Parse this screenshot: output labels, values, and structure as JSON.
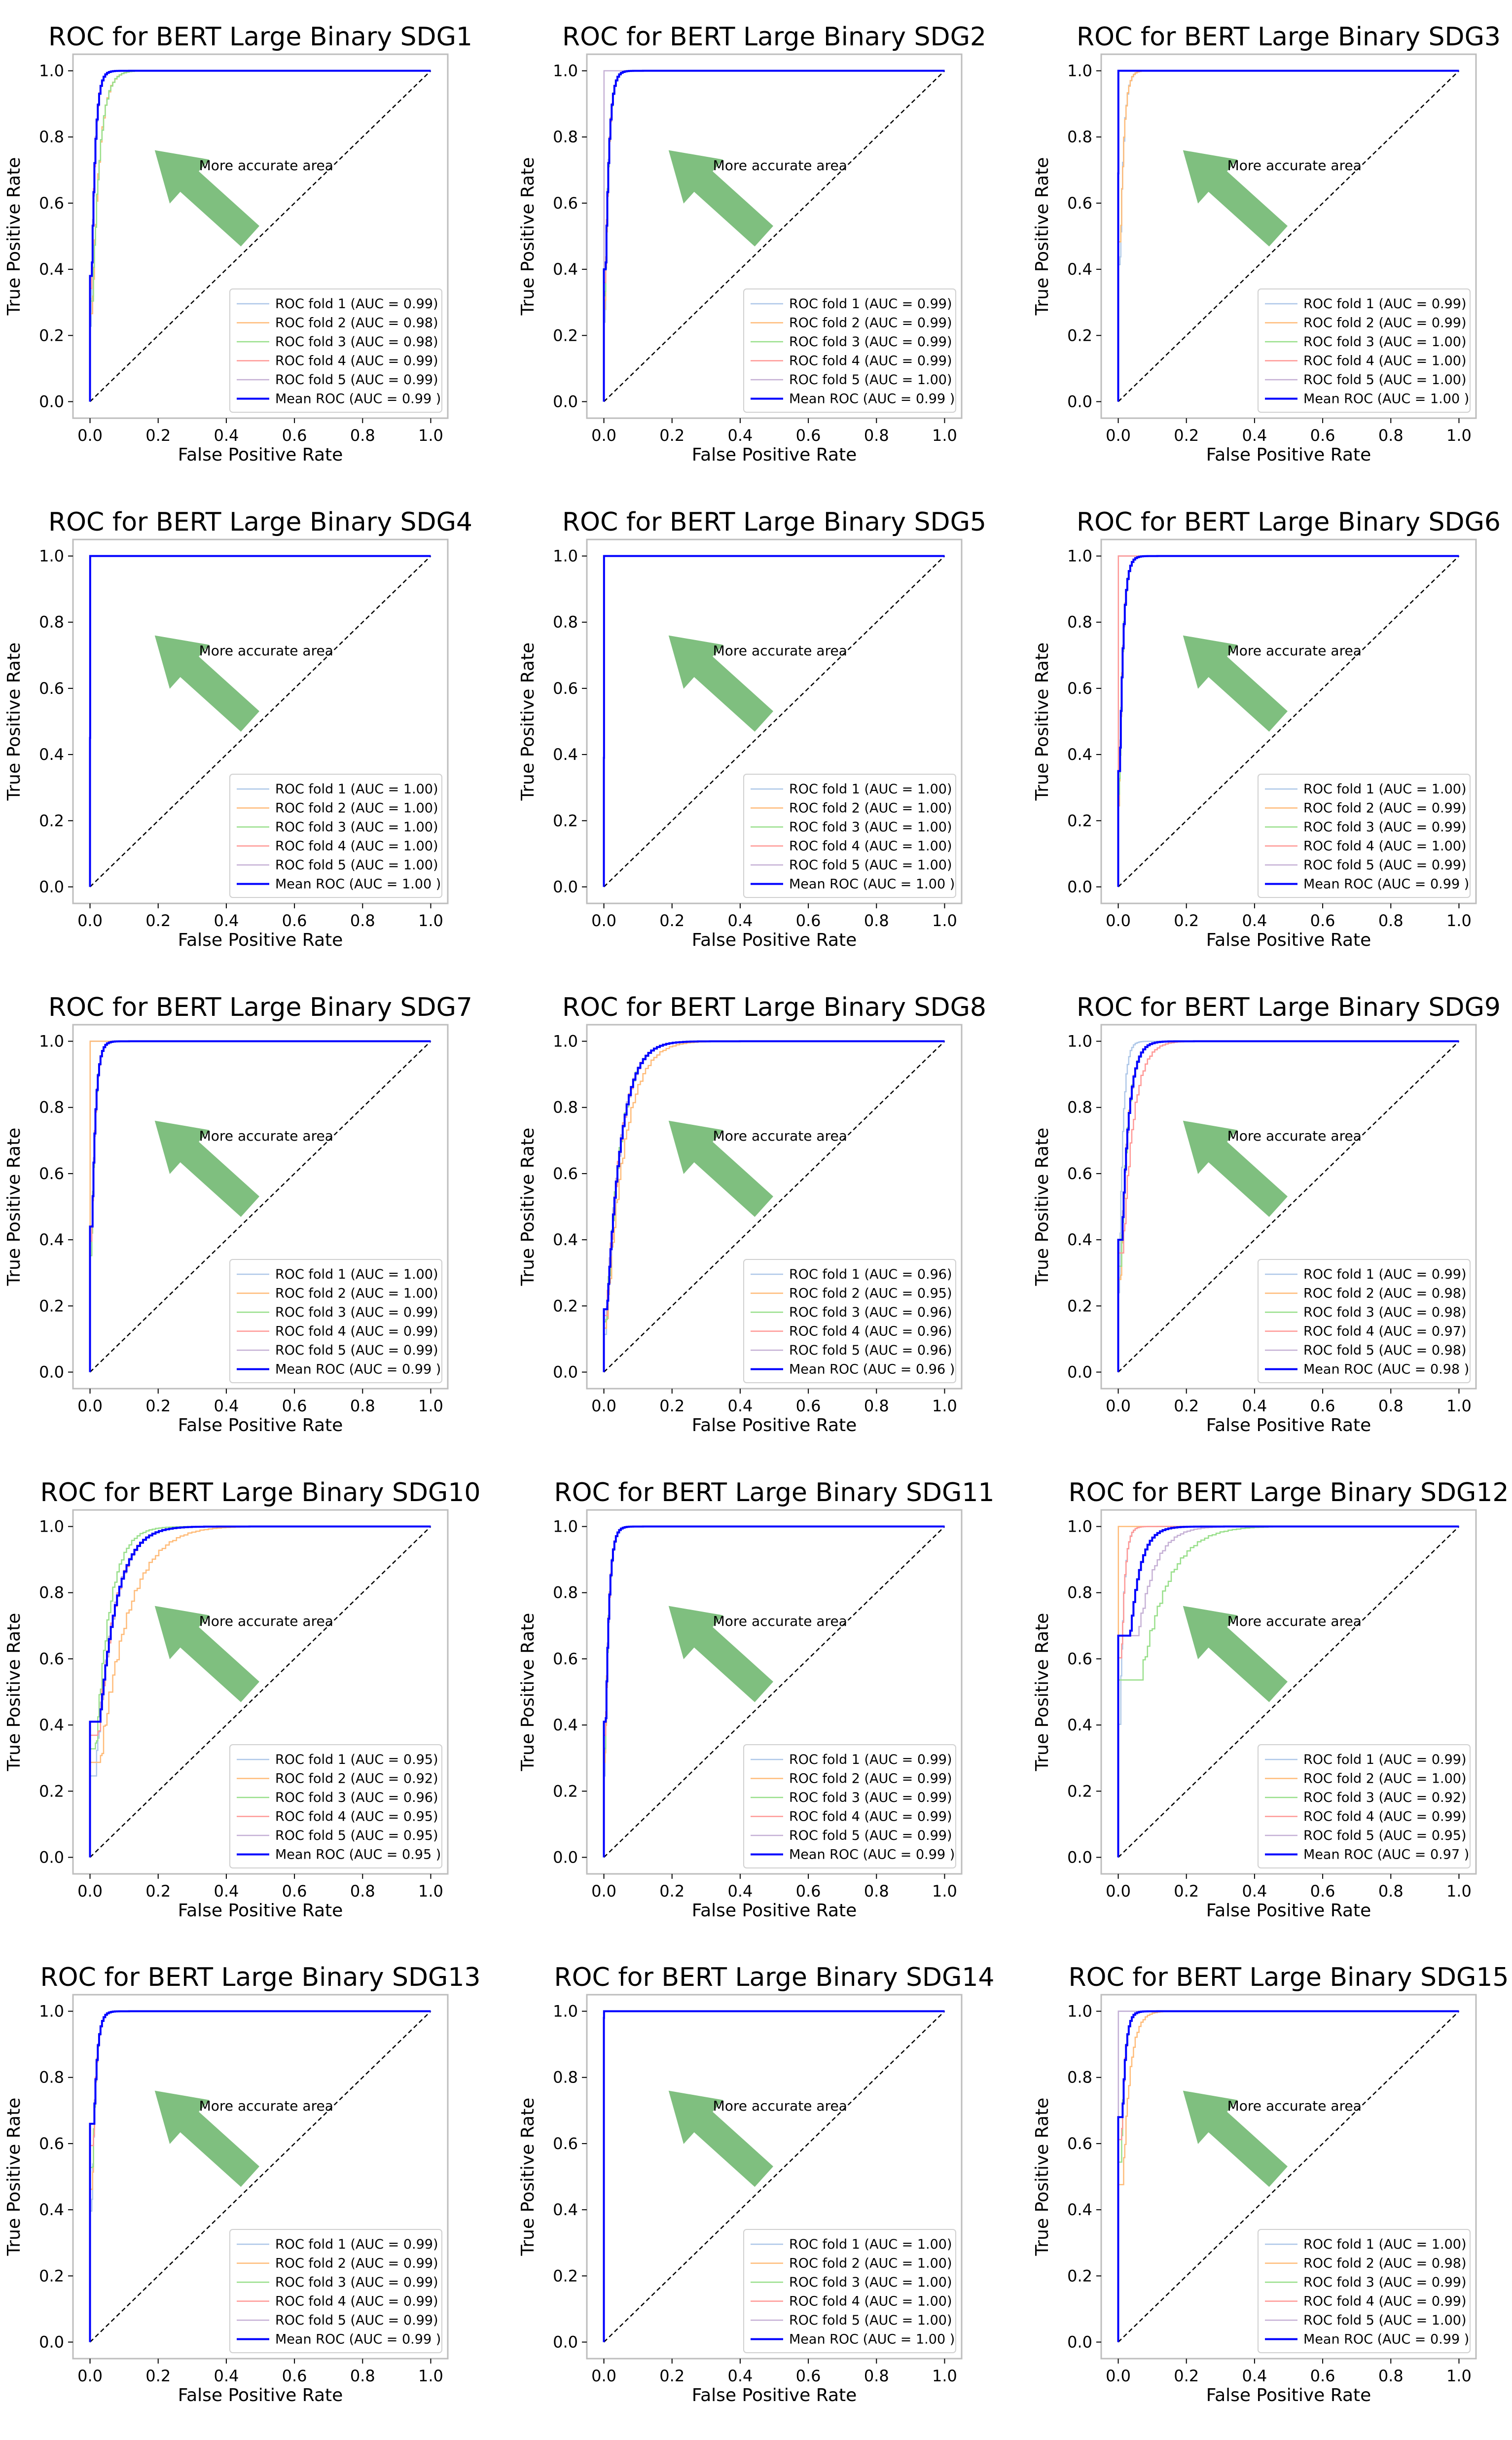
{
  "figure": {
    "arrow_label": "More accurate area",
    "x_axis_label": "False Positive Rate",
    "y_axis_label": "True Positive Rate",
    "ticks": [
      "0.0",
      "0.2",
      "0.4",
      "0.6",
      "0.8",
      "1.0"
    ]
  },
  "colors": {
    "fold1": "#aec7e8",
    "fold2": "#ffbb78",
    "fold3": "#98df8a",
    "fold4": "#ff9896",
    "fold5": "#c5b0d5",
    "mean": "#0000ff",
    "diagonal": "#000000",
    "arrow": "#7fbf7f"
  },
  "chart_data": [
    {
      "type": "line",
      "title": "ROC for BERT Large Binary SDG1",
      "xlabel": "False Positive Rate",
      "ylabel": "True Positive Rate",
      "xlim": [
        0,
        1
      ],
      "ylim": [
        0,
        1
      ],
      "legend_position": "lower-right",
      "folds": [
        {
          "label": "ROC fold 1 (AUC = 0.99)",
          "auc": 0.99
        },
        {
          "label": "ROC fold 2 (AUC = 0.98)",
          "auc": 0.98
        },
        {
          "label": "ROC fold 3 (AUC = 0.98)",
          "auc": 0.98
        },
        {
          "label": "ROC fold 4 (AUC = 0.99)",
          "auc": 0.99
        },
        {
          "label": "ROC fold 5 (AUC = 0.99)",
          "auc": 0.99
        }
      ],
      "mean": {
        "label": "Mean ROC (AUC = 0.99 )",
        "auc": 0.99,
        "start_tpr": 0.38
      }
    },
    {
      "type": "line",
      "title": "ROC for BERT Large Binary SDG2",
      "xlabel": "False Positive Rate",
      "ylabel": "True Positive Rate",
      "xlim": [
        0,
        1
      ],
      "ylim": [
        0,
        1
      ],
      "legend_position": "lower-right",
      "folds": [
        {
          "label": "ROC fold 1 (AUC = 0.99)",
          "auc": 0.99
        },
        {
          "label": "ROC fold 2 (AUC = 0.99)",
          "auc": 0.99
        },
        {
          "label": "ROC fold 3 (AUC = 0.99)",
          "auc": 0.99
        },
        {
          "label": "ROC fold 4 (AUC = 0.99)",
          "auc": 0.99
        },
        {
          "label": "ROC fold 5 (AUC = 1.00)",
          "auc": 1.0
        }
      ],
      "mean": {
        "label": "Mean ROC (AUC = 0.99 )",
        "auc": 0.99,
        "start_tpr": 0.4
      }
    },
    {
      "type": "line",
      "title": "ROC for BERT Large Binary SDG3",
      "xlabel": "False Positive Rate",
      "ylabel": "True Positive Rate",
      "xlim": [
        0,
        1
      ],
      "ylim": [
        0,
        1
      ],
      "legend_position": "lower-right",
      "folds": [
        {
          "label": "ROC fold 1 (AUC = 0.99)",
          "auc": 0.99
        },
        {
          "label": "ROC fold 2 (AUC = 0.99)",
          "auc": 0.99
        },
        {
          "label": "ROC fold 3 (AUC = 1.00)",
          "auc": 1.0
        },
        {
          "label": "ROC fold 4 (AUC = 1.00)",
          "auc": 1.0
        },
        {
          "label": "ROC fold 5 (AUC = 1.00)",
          "auc": 1.0
        }
      ],
      "mean": {
        "label": "Mean ROC (AUC = 1.00 )",
        "auc": 1.0,
        "start_tpr": 0.69
      }
    },
    {
      "type": "line",
      "title": "ROC for BERT Large Binary SDG4",
      "xlabel": "False Positive Rate",
      "ylabel": "True Positive Rate",
      "xlim": [
        0,
        1
      ],
      "ylim": [
        0,
        1
      ],
      "legend_position": "lower-right",
      "folds": [
        {
          "label": "ROC fold 1 (AUC = 1.00)",
          "auc": 1.0
        },
        {
          "label": "ROC fold 2 (AUC = 1.00)",
          "auc": 1.0
        },
        {
          "label": "ROC fold 3 (AUC = 1.00)",
          "auc": 1.0
        },
        {
          "label": "ROC fold 4 (AUC = 1.00)",
          "auc": 1.0
        },
        {
          "label": "ROC fold 5 (AUC = 1.00)",
          "auc": 1.0
        }
      ],
      "mean": {
        "label": "Mean ROC (AUC = 1.00 )",
        "auc": 1.0,
        "start_tpr": 0.45
      }
    },
    {
      "type": "line",
      "title": "ROC for BERT Large Binary SDG5",
      "xlabel": "False Positive Rate",
      "ylabel": "True Positive Rate",
      "xlim": [
        0,
        1
      ],
      "ylim": [
        0,
        1
      ],
      "legend_position": "lower-right",
      "folds": [
        {
          "label": "ROC fold 1 (AUC = 1.00)",
          "auc": 1.0
        },
        {
          "label": "ROC fold 2 (AUC = 1.00)",
          "auc": 1.0
        },
        {
          "label": "ROC fold 3 (AUC = 1.00)",
          "auc": 1.0
        },
        {
          "label": "ROC fold 4 (AUC = 1.00)",
          "auc": 1.0
        },
        {
          "label": "ROC fold 5 (AUC = 1.00)",
          "auc": 1.0
        }
      ],
      "mean": {
        "label": "Mean ROC (AUC = 1.00 )",
        "auc": 1.0,
        "start_tpr": 0.39
      }
    },
    {
      "type": "line",
      "title": "ROC for BERT Large Binary SDG6",
      "xlabel": "False Positive Rate",
      "ylabel": "True Positive Rate",
      "xlim": [
        0,
        1
      ],
      "ylim": [
        0,
        1
      ],
      "legend_position": "lower-right",
      "folds": [
        {
          "label": "ROC fold 1 (AUC = 1.00)",
          "auc": 1.0
        },
        {
          "label": "ROC fold 2 (AUC = 0.99)",
          "auc": 0.99
        },
        {
          "label": "ROC fold 3 (AUC = 0.99)",
          "auc": 0.99
        },
        {
          "label": "ROC fold 4 (AUC = 1.00)",
          "auc": 1.0
        },
        {
          "label": "ROC fold 5 (AUC = 0.99)",
          "auc": 0.99
        }
      ],
      "mean": {
        "label": "Mean ROC (AUC = 0.99 )",
        "auc": 0.99,
        "start_tpr": 0.35
      }
    },
    {
      "type": "line",
      "title": "ROC for BERT Large Binary SDG7",
      "xlabel": "False Positive Rate",
      "ylabel": "True Positive Rate",
      "xlim": [
        0,
        1
      ],
      "ylim": [
        0,
        1
      ],
      "legend_position": "lower-right",
      "folds": [
        {
          "label": "ROC fold 1 (AUC = 1.00)",
          "auc": 1.0
        },
        {
          "label": "ROC fold 2 (AUC = 1.00)",
          "auc": 1.0
        },
        {
          "label": "ROC fold 3 (AUC = 0.99)",
          "auc": 0.99
        },
        {
          "label": "ROC fold 4 (AUC = 0.99)",
          "auc": 0.99
        },
        {
          "label": "ROC fold 5 (AUC = 0.99)",
          "auc": 0.99
        }
      ],
      "mean": {
        "label": "Mean ROC (AUC = 0.99 )",
        "auc": 0.99,
        "start_tpr": 0.44
      }
    },
    {
      "type": "line",
      "title": "ROC for BERT Large Binary SDG8",
      "xlabel": "False Positive Rate",
      "ylabel": "True Positive Rate",
      "xlim": [
        0,
        1
      ],
      "ylim": [
        0,
        1
      ],
      "legend_position": "lower-right",
      "folds": [
        {
          "label": "ROC fold 1 (AUC = 0.96)",
          "auc": 0.96
        },
        {
          "label": "ROC fold 2 (AUC = 0.95)",
          "auc": 0.95
        },
        {
          "label": "ROC fold 3 (AUC = 0.96)",
          "auc": 0.96
        },
        {
          "label": "ROC fold 4 (AUC = 0.96)",
          "auc": 0.96
        },
        {
          "label": "ROC fold 5 (AUC = 0.96)",
          "auc": 0.96
        }
      ],
      "mean": {
        "label": "Mean ROC (AUC = 0.96 )",
        "auc": 0.96,
        "start_tpr": 0.19
      }
    },
    {
      "type": "line",
      "title": "ROC for BERT Large Binary SDG9",
      "xlabel": "False Positive Rate",
      "ylabel": "True Positive Rate",
      "xlim": [
        0,
        1
      ],
      "ylim": [
        0,
        1
      ],
      "legend_position": "lower-right",
      "folds": [
        {
          "label": "ROC fold 1 (AUC = 0.99)",
          "auc": 0.99
        },
        {
          "label": "ROC fold 2 (AUC = 0.98)",
          "auc": 0.98
        },
        {
          "label": "ROC fold 3 (AUC = 0.98)",
          "auc": 0.98
        },
        {
          "label": "ROC fold 4 (AUC = 0.97)",
          "auc": 0.97
        },
        {
          "label": "ROC fold 5 (AUC = 0.98)",
          "auc": 0.98
        }
      ],
      "mean": {
        "label": "Mean ROC (AUC = 0.98 )",
        "auc": 0.98,
        "start_tpr": 0.4
      }
    },
    {
      "type": "line",
      "title": "ROC for BERT Large Binary SDG10",
      "xlabel": "False Positive Rate",
      "ylabel": "True Positive Rate",
      "xlim": [
        0,
        1
      ],
      "ylim": [
        0,
        1
      ],
      "legend_position": "lower-right",
      "folds": [
        {
          "label": "ROC fold 1 (AUC = 0.95)",
          "auc": 0.95
        },
        {
          "label": "ROC fold 2 (AUC = 0.92)",
          "auc": 0.92
        },
        {
          "label": "ROC fold 3 (AUC = 0.96)",
          "auc": 0.96
        },
        {
          "label": "ROC fold 4 (AUC = 0.95)",
          "auc": 0.95
        },
        {
          "label": "ROC fold 5 (AUC = 0.95)",
          "auc": 0.95
        }
      ],
      "mean": {
        "label": "Mean ROC (AUC = 0.95 )",
        "auc": 0.95,
        "start_tpr": 0.41
      }
    },
    {
      "type": "line",
      "title": "ROC for BERT Large Binary SDG11",
      "xlabel": "False Positive Rate",
      "ylabel": "True Positive Rate",
      "xlim": [
        0,
        1
      ],
      "ylim": [
        0,
        1
      ],
      "legend_position": "lower-right",
      "folds": [
        {
          "label": "ROC fold 1 (AUC = 0.99)",
          "auc": 0.99
        },
        {
          "label": "ROC fold 2 (AUC = 0.99)",
          "auc": 0.99
        },
        {
          "label": "ROC fold 3 (AUC = 0.99)",
          "auc": 0.99
        },
        {
          "label": "ROC fold 4 (AUC = 0.99)",
          "auc": 0.99
        },
        {
          "label": "ROC fold 5 (AUC = 0.99)",
          "auc": 0.99
        }
      ],
      "mean": {
        "label": "Mean ROC (AUC = 0.99 )",
        "auc": 0.99,
        "start_tpr": 0.41
      }
    },
    {
      "type": "line",
      "title": "ROC for BERT Large Binary SDG12",
      "xlabel": "False Positive Rate",
      "ylabel": "True Positive Rate",
      "xlim": [
        0,
        1
      ],
      "ylim": [
        0,
        1
      ],
      "legend_position": "lower-right",
      "folds": [
        {
          "label": "ROC fold 1 (AUC = 0.99)",
          "auc": 0.99
        },
        {
          "label": "ROC fold 2 (AUC = 1.00)",
          "auc": 1.0
        },
        {
          "label": "ROC fold 3 (AUC = 0.92)",
          "auc": 0.92
        },
        {
          "label": "ROC fold 4 (AUC = 0.99)",
          "auc": 0.99
        },
        {
          "label": "ROC fold 5 (AUC = 0.95)",
          "auc": 0.95
        }
      ],
      "mean": {
        "label": "Mean ROC (AUC = 0.97 )",
        "auc": 0.97,
        "start_tpr": 0.67
      }
    },
    {
      "type": "line",
      "title": "ROC for BERT Large Binary SDG13",
      "xlabel": "False Positive Rate",
      "ylabel": "True Positive Rate",
      "xlim": [
        0,
        1
      ],
      "ylim": [
        0,
        1
      ],
      "legend_position": "lower-right",
      "folds": [
        {
          "label": "ROC fold 1 (AUC = 0.99)",
          "auc": 0.99
        },
        {
          "label": "ROC fold 2 (AUC = 0.99)",
          "auc": 0.99
        },
        {
          "label": "ROC fold 3 (AUC = 0.99)",
          "auc": 0.99
        },
        {
          "label": "ROC fold 4 (AUC = 0.99)",
          "auc": 0.99
        },
        {
          "label": "ROC fold 5 (AUC = 0.99)",
          "auc": 0.99
        }
      ],
      "mean": {
        "label": "Mean ROC (AUC = 0.99 )",
        "auc": 0.99,
        "start_tpr": 0.66
      }
    },
    {
      "type": "line",
      "title": "ROC for BERT Large Binary SDG14",
      "xlabel": "False Positive Rate",
      "ylabel": "True Positive Rate",
      "xlim": [
        0,
        1
      ],
      "ylim": [
        0,
        1
      ],
      "legend_position": "lower-right",
      "folds": [
        {
          "label": "ROC fold 1 (AUC = 1.00)",
          "auc": 1.0
        },
        {
          "label": "ROC fold 2 (AUC = 1.00)",
          "auc": 1.0
        },
        {
          "label": "ROC fold 3 (AUC = 1.00)",
          "auc": 1.0
        },
        {
          "label": "ROC fold 4 (AUC = 1.00)",
          "auc": 1.0
        },
        {
          "label": "ROC fold 5 (AUC = 1.00)",
          "auc": 1.0
        }
      ],
      "mean": {
        "label": "Mean ROC (AUC = 1.00 )",
        "auc": 1.0,
        "start_tpr": 0.98
      }
    },
    {
      "type": "line",
      "title": "ROC for BERT Large Binary SDG15",
      "xlabel": "False Positive Rate",
      "ylabel": "True Positive Rate",
      "xlim": [
        0,
        1
      ],
      "ylim": [
        0,
        1
      ],
      "legend_position": "lower-right",
      "folds": [
        {
          "label": "ROC fold 1 (AUC = 1.00)",
          "auc": 1.0
        },
        {
          "label": "ROC fold 2 (AUC = 0.98)",
          "auc": 0.98
        },
        {
          "label": "ROC fold 3 (AUC = 0.99)",
          "auc": 0.99
        },
        {
          "label": "ROC fold 4 (AUC = 0.99)",
          "auc": 0.99
        },
        {
          "label": "ROC fold 5 (AUC = 1.00)",
          "auc": 1.0
        }
      ],
      "mean": {
        "label": "Mean ROC (AUC = 0.99 )",
        "auc": 0.99,
        "start_tpr": 0.68
      }
    }
  ]
}
